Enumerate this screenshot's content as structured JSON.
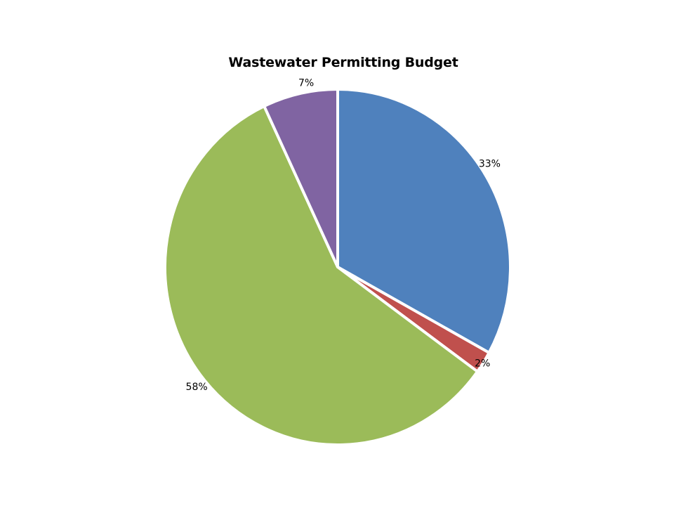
{
  "chart_data": {
    "type": "pie",
    "title": "Wastewater Permitting Budget",
    "slices": [
      {
        "value": 33,
        "label": "33%",
        "color": "#4F81BD"
      },
      {
        "value": 2,
        "label": "2%",
        "color": "#C0504D"
      },
      {
        "value": 58,
        "label": "58%",
        "color": "#9BBB59"
      },
      {
        "value": 7,
        "label": "7%",
        "color": "#8064A2"
      }
    ],
    "start_angle_deg": 0,
    "direction": "clockwise",
    "legend": "none"
  }
}
